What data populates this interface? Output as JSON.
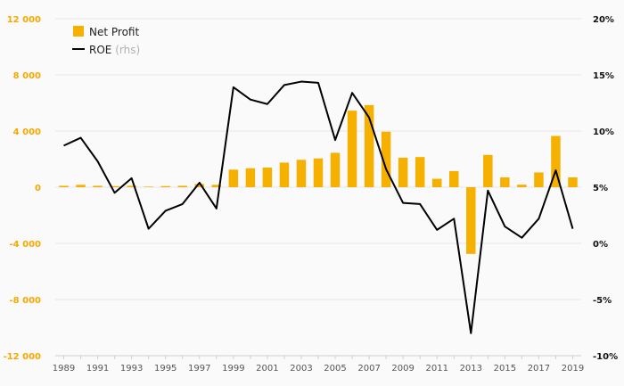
{
  "chart_data": {
    "type": "bar",
    "x": [
      "1989",
      "1990",
      "1991",
      "1992",
      "1993",
      "1994",
      "1995",
      "1996",
      "1997",
      "1998",
      "1999",
      "2000",
      "2001",
      "2002",
      "2003",
      "2004",
      "2005",
      "2006",
      "2007",
      "2008",
      "2009",
      "2010",
      "2011",
      "2012",
      "2013",
      "2014",
      "2015",
      "2016",
      "2017",
      "2018",
      "2019"
    ],
    "x_tick_labels": [
      "1989",
      "1991",
      "1993",
      "1995",
      "1997",
      "1999",
      "2001",
      "2003",
      "2005",
      "2007",
      "2009",
      "2011",
      "2013",
      "2015",
      "2017",
      "2019"
    ],
    "series": [
      {
        "name": "Net Profit",
        "type": "bar",
        "axis": "left",
        "color": "#f5b000",
        "values": [
          100,
          170,
          100,
          80,
          100,
          40,
          80,
          100,
          230,
          170,
          1250,
          1350,
          1400,
          1750,
          1950,
          2050,
          2450,
          5450,
          5850,
          3950,
          2100,
          2150,
          600,
          1150,
          -4750,
          2300,
          700,
          180,
          1050,
          3650,
          700
        ]
      },
      {
        "name": "ROE",
        "name_suffix": "(rhs)",
        "type": "line",
        "axis": "right",
        "color": "#000000",
        "values": [
          8.7,
          9.4,
          7.3,
          4.5,
          5.8,
          1.3,
          2.9,
          3.5,
          5.4,
          3.1,
          13.9,
          12.8,
          12.4,
          14.1,
          14.4,
          14.3,
          9.2,
          13.4,
          11.2,
          6.6,
          3.6,
          3.5,
          1.2,
          2.2,
          -8.0,
          4.7,
          1.5,
          0.5,
          2.2,
          6.5,
          1.3
        ]
      }
    ],
    "y_left": {
      "min": -12000,
      "max": 12000,
      "ticks": [
        -12000,
        -8000,
        -4000,
        0,
        4000,
        8000,
        12000
      ],
      "tick_labels": [
        "-12 000",
        "-8 000",
        "-4 000",
        "0",
        "4 000",
        "8 000",
        "12 000"
      ]
    },
    "y_right": {
      "min": -10,
      "max": 20,
      "ticks": [
        -10,
        -5,
        0,
        5,
        10,
        15,
        20
      ],
      "tick_labels": [
        "-10%",
        "-5%",
        "0%",
        "5%",
        "10%",
        "15%",
        "20%"
      ]
    },
    "grid": "horizontal",
    "legend": "top-left",
    "colors": {
      "bar": "#f5b000",
      "line": "#000000",
      "left_axis_labels": "#f5a800",
      "grid": "#e6e6e6",
      "background": "#fafafa"
    }
  }
}
